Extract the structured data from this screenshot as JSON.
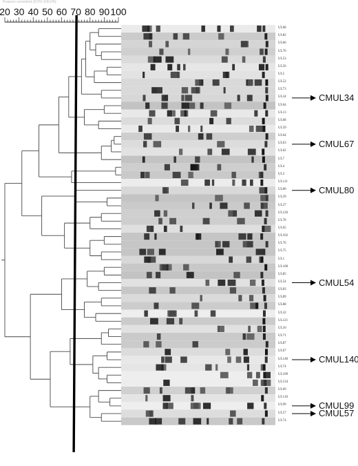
{
  "scale_caption": "Pearson correlation [0.0%-100.0%]",
  "scale_ticks": [
    "20",
    "30",
    "40",
    "50",
    "60",
    "70",
    "80",
    "90",
    "100"
  ],
  "lane_labels": [
    "UL68",
    "UL82",
    "UL66",
    "UL70",
    "UL53",
    "UL56",
    "UL5",
    "UL52",
    "UL73",
    "UL34",
    "UL64",
    "UL13",
    "UL68",
    "UL59",
    "UL64",
    "UL63",
    "UL62",
    "UL7",
    "UL4",
    "UL3",
    "UL111",
    "UL80",
    "UL29",
    "UL27",
    "UL126",
    "UL78",
    "UL65",
    "UL102",
    "UL76",
    "UL75",
    "UL1",
    "UL100",
    "UL85",
    "UL54",
    "UL83",
    "UL89",
    "UL88",
    "UL32",
    "UL121",
    "UL10",
    "UL71",
    "UL87",
    "UL67",
    "UL140",
    "UL74",
    "UL109",
    "UL134",
    "UL69",
    "UL110",
    "UL99",
    "UL57",
    "UL74"
  ],
  "callouts": [
    {
      "label": "CMUL34"
    },
    {
      "label": "CMUL67"
    },
    {
      "label": "CMUL80"
    },
    {
      "label": "CMUL54"
    },
    {
      "label": "CMUL140"
    },
    {
      "label": "CMUL99"
    },
    {
      "label": "CMUL57"
    }
  ]
}
